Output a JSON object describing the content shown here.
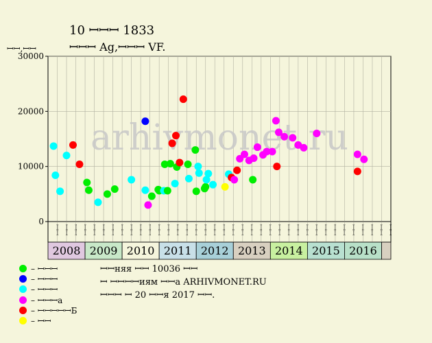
{
  "header": {
    "title": "10 ꟷꟷꟷ 1833",
    "subtitle": "ꟷꟷꟷ Ag,ꟷꟷꟷ VF.",
    "y_unit": "ꟷꟷ,ꟷꟷ"
  },
  "watermark": "arhivmonet.ru",
  "colors": {
    "background": "#f5f5dc",
    "plot_bg": "#f5f5dc",
    "grid": "#b0b0a0",
    "green": "#00ee00",
    "blue": "#0000ff",
    "cyan": "#00ffff",
    "magenta": "#ff00ff",
    "red": "#ff0000",
    "yellow": "#ffff00"
  },
  "legend": [
    {
      "color": "green",
      "label": "– ꟷꟷꟷ"
    },
    {
      "color": "blue",
      "label": "– ꟷꟷꟷ"
    },
    {
      "color": "cyan",
      "label": "– ꟷꟷꟷ"
    },
    {
      "color": "magenta",
      "label": "– ꟷꟷꟷа"
    },
    {
      "color": "red",
      "label": "– ꟷꟷꟷꟷꟷБ"
    },
    {
      "color": "yellow",
      "label": "– ꟷꟷ"
    }
  ],
  "notes": [
    "ꟷꟷняя ꟷꟷ 10036 ꟷꟷ",
    "ꟷ ꟷꟷꟷꟷиям ꟷꟷа ARHIVMONET.RU",
    "ꟷꟷꟷ ꟷ 20 ꟷꟷя 2017 ꟷꟷ."
  ],
  "chart_data": {
    "type": "scatter",
    "ylim": [
      0,
      30000
    ],
    "yticks": [
      "0",
      "10000",
      "20000",
      "30000"
    ],
    "years": [
      {
        "label": "2008",
        "color": "#e0c8e0"
      },
      {
        "label": "2009",
        "color": "#c8e8c8"
      },
      {
        "label": "2010",
        "color": "#f5f5dc"
      },
      {
        "label": "2011",
        "color": "#c8e0e8"
      },
      {
        "label": "2012",
        "color": "#a8d0d8"
      },
      {
        "label": "2013",
        "color": "#d8d0c0"
      },
      {
        "label": "2014",
        "color": "#c8f0a0"
      },
      {
        "label": "2015",
        "color": "#b8e0d0"
      },
      {
        "label": "2016",
        "color": "#b8e0c8"
      }
    ],
    "months": [
      "ꟷꟷ",
      "ꟷꟷ",
      "ꟷꟷ",
      "ꟷꟷ",
      "ꟷꟷ",
      "ꟷꟷ",
      "ꟷꟷ",
      "ꟷꟷ",
      "ꟷꟷ",
      "ꟷꟷ",
      "ꟷꟷ",
      "ꟷꟷ",
      "ꟷꟷ",
      "ꟷꟷ",
      "ꟷꟷ",
      "ꟷꟷ",
      "ꟷꟷ",
      "ꟷꟷ",
      "ꟷꟷ",
      "ꟷꟷ",
      "ꟷꟷ",
      "ꟷꟷ",
      "ꟷꟷ",
      "ꟷꟷ",
      "ꟷꟷ",
      "ꟷꟷ",
      "ꟷꟷ",
      "ꟷꟷ",
      "ꟷꟷ",
      "ꟷꟷ",
      "ꟷꟷ",
      "ꟷꟷ",
      "ꟷꟷ",
      "ꟷꟷ",
      "ꟷꟷ",
      "ꟷꟷ",
      "ꟷꟷ"
    ],
    "points": [
      {
        "x": 0.1,
        "y": 13700,
        "c": "cyan"
      },
      {
        "x": 0.3,
        "y": 8400,
        "c": "cyan"
      },
      {
        "x": 0.8,
        "y": 5500,
        "c": "cyan"
      },
      {
        "x": 1.5,
        "y": 12000,
        "c": "cyan"
      },
      {
        "x": 2.2,
        "y": 13900,
        "c": "red"
      },
      {
        "x": 2.9,
        "y": 10400,
        "c": "red"
      },
      {
        "x": 3.7,
        "y": 7100,
        "c": "green"
      },
      {
        "x": 3.9,
        "y": 5700,
        "c": "green"
      },
      {
        "x": 4.9,
        "y": 3500,
        "c": "cyan"
      },
      {
        "x": 5.9,
        "y": 5000,
        "c": "green"
      },
      {
        "x": 6.7,
        "y": 5900,
        "c": "green"
      },
      {
        "x": 8.5,
        "y": 7600,
        "c": "cyan"
      },
      {
        "x": 10.0,
        "y": 5700,
        "c": "cyan"
      },
      {
        "x": 10.0,
        "y": 18200,
        "c": "blue"
      },
      {
        "x": 10.3,
        "y": 3000,
        "c": "magenta"
      },
      {
        "x": 10.7,
        "y": 4600,
        "c": "green"
      },
      {
        "x": 11.4,
        "y": 5800,
        "c": "green"
      },
      {
        "x": 11.5,
        "y": 5600,
        "c": "green"
      },
      {
        "x": 12.0,
        "y": 5600,
        "c": "cyan"
      },
      {
        "x": 12.1,
        "y": 10400,
        "c": "green"
      },
      {
        "x": 12.4,
        "y": 5600,
        "c": "green"
      },
      {
        "x": 12.7,
        "y": 10500,
        "c": "green"
      },
      {
        "x": 12.9,
        "y": 14200,
        "c": "red"
      },
      {
        "x": 13.2,
        "y": 6900,
        "c": "cyan"
      },
      {
        "x": 13.3,
        "y": 15600,
        "c": "red"
      },
      {
        "x": 13.4,
        "y": 9900,
        "c": "green"
      },
      {
        "x": 13.7,
        "y": 10700,
        "c": "red"
      },
      {
        "x": 14.1,
        "y": 22200,
        "c": "red"
      },
      {
        "x": 14.6,
        "y": 10400,
        "c": "green"
      },
      {
        "x": 14.7,
        "y": 7800,
        "c": "cyan"
      },
      {
        "x": 15.4,
        "y": 13000,
        "c": "green"
      },
      {
        "x": 15.5,
        "y": 5500,
        "c": "green"
      },
      {
        "x": 15.7,
        "y": 10000,
        "c": "cyan"
      },
      {
        "x": 15.8,
        "y": 8800,
        "c": "cyan"
      },
      {
        "x": 16.4,
        "y": 6000,
        "c": "green"
      },
      {
        "x": 16.5,
        "y": 6300,
        "c": "green"
      },
      {
        "x": 16.6,
        "y": 7600,
        "c": "cyan"
      },
      {
        "x": 16.8,
        "y": 8700,
        "c": "cyan"
      },
      {
        "x": 17.3,
        "y": 6700,
        "c": "cyan"
      },
      {
        "x": 18.6,
        "y": 6300,
        "c": "yellow"
      },
      {
        "x": 19.0,
        "y": 8600,
        "c": "cyan"
      },
      {
        "x": 19.3,
        "y": 8000,
        "c": "red"
      },
      {
        "x": 19.6,
        "y": 7600,
        "c": "magenta"
      },
      {
        "x": 19.9,
        "y": 9300,
        "c": "red"
      },
      {
        "x": 20.2,
        "y": 11400,
        "c": "magenta"
      },
      {
        "x": 20.7,
        "y": 12200,
        "c": "magenta"
      },
      {
        "x": 21.2,
        "y": 11100,
        "c": "magenta"
      },
      {
        "x": 21.7,
        "y": 11500,
        "c": "magenta"
      },
      {
        "x": 21.6,
        "y": 7600,
        "c": "green"
      },
      {
        "x": 22.1,
        "y": 13500,
        "c": "magenta"
      },
      {
        "x": 22.7,
        "y": 12100,
        "c": "magenta"
      },
      {
        "x": 23.1,
        "y": 12700,
        "c": "magenta"
      },
      {
        "x": 23.7,
        "y": 12700,
        "c": "magenta"
      },
      {
        "x": 24.1,
        "y": 18300,
        "c": "magenta"
      },
      {
        "x": 24.2,
        "y": 10000,
        "c": "red"
      },
      {
        "x": 24.4,
        "y": 16200,
        "c": "magenta"
      },
      {
        "x": 25.0,
        "y": 15400,
        "c": "magenta"
      },
      {
        "x": 25.9,
        "y": 15200,
        "c": "magenta"
      },
      {
        "x": 26.5,
        "y": 13900,
        "c": "magenta"
      },
      {
        "x": 27.1,
        "y": 13400,
        "c": "magenta"
      },
      {
        "x": 28.5,
        "y": 16000,
        "c": "magenta"
      },
      {
        "x": 32.9,
        "y": 12200,
        "c": "magenta"
      },
      {
        "x": 32.9,
        "y": 9100,
        "c": "red"
      },
      {
        "x": 33.6,
        "y": 11300,
        "c": "magenta"
      }
    ]
  }
}
